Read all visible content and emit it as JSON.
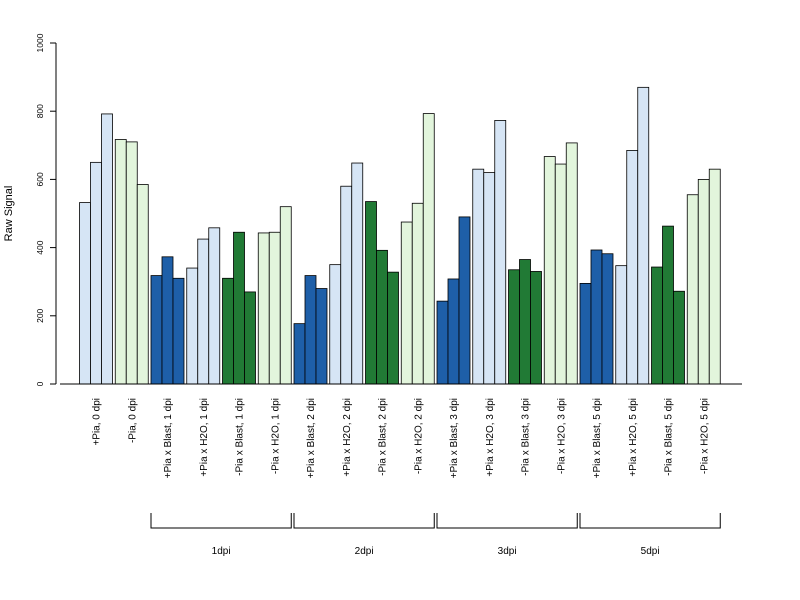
{
  "chart_data": {
    "type": "bar",
    "ylabel": "Raw Signal",
    "ylim": [
      0,
      1000
    ],
    "yticks": [
      0,
      200,
      400,
      600,
      800,
      1000
    ],
    "grid": false,
    "palette": {
      "pia_plus_light": "#d6e5f5",
      "pia_plus_dark": "#1e5fa8",
      "pia_minus_light": "#e2f5dc",
      "pia_minus_dark": "#217a35"
    },
    "categories": [
      "+Pia, 0 dpi",
      "-Pia, 0 dpi",
      "+Pia x Blast, 1 dpi",
      "+Pia x H2O, 1 dpi",
      "-Pia x Blast, 1 dpi",
      "-Pia x H2O, 1 dpi",
      "+Pia x Blast, 2 dpi",
      "+Pia x H2O, 2 dpi",
      "-Pia x Blast, 2 dpi",
      "-Pia x H2O, 2 dpi",
      "+Pia x Blast, 3 dpi",
      "+Pia x H2O, 3 dpi",
      "-Pia x Blast, 3 dpi",
      "-Pia x H2O, 3 dpi",
      "+Pia x Blast, 5 dpi",
      "+Pia x H2O, 5 dpi",
      "-Pia x Blast, 5 dpi",
      "-Pia x H2O, 5 dpi"
    ],
    "color_keys": [
      "pia_plus_light",
      "pia_minus_light",
      "pia_plus_dark",
      "pia_plus_light",
      "pia_minus_dark",
      "pia_minus_light",
      "pia_plus_dark",
      "pia_plus_light",
      "pia_minus_dark",
      "pia_minus_light",
      "pia_plus_dark",
      "pia_plus_light",
      "pia_minus_dark",
      "pia_minus_light",
      "pia_plus_dark",
      "pia_plus_light",
      "pia_minus_dark",
      "pia_minus_light"
    ],
    "values": [
      [
        532,
        650,
        792
      ],
      [
        717,
        710,
        585
      ],
      [
        318,
        373,
        310
      ],
      [
        340,
        425,
        458
      ],
      [
        310,
        445,
        270
      ],
      [
        443,
        445,
        520
      ],
      [
        177,
        318,
        280
      ],
      [
        350,
        580,
        648
      ],
      [
        535,
        392,
        328
      ],
      [
        475,
        530,
        793
      ],
      [
        243,
        308,
        490
      ],
      [
        630,
        620,
        773
      ],
      [
        335,
        365,
        330
      ],
      [
        667,
        645,
        707
      ],
      [
        295,
        393,
        382
      ],
      [
        347,
        685,
        870
      ],
      [
        343,
        463,
        272
      ],
      [
        555,
        600,
        630
      ]
    ],
    "groups": [
      {
        "label": "1dpi",
        "start": 2,
        "end": 5
      },
      {
        "label": "2dpi",
        "start": 6,
        "end": 9
      },
      {
        "label": "3dpi",
        "start": 10,
        "end": 13
      },
      {
        "label": "5dpi",
        "start": 14,
        "end": 17
      }
    ]
  }
}
